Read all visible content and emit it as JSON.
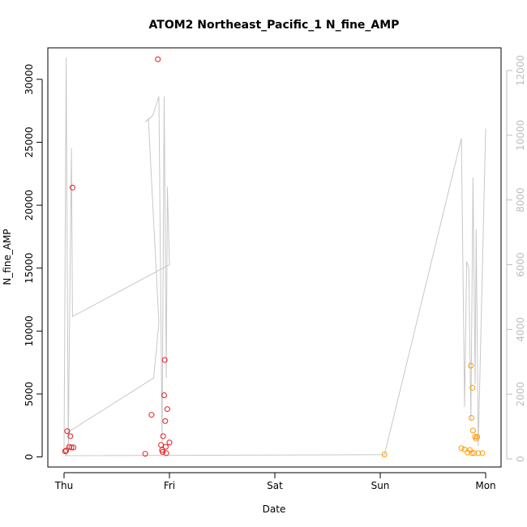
{
  "chart_data": {
    "type": "scatter",
    "title": "ATOM2 Northeast_Pacific_1 N_fine_AMP",
    "xlabel": "Date",
    "ylabel": "N_fine_AMP",
    "x_ticks": [
      "Thu",
      "Fri",
      "Sat",
      "Sun",
      "Mon"
    ],
    "xlim": [
      0,
      4
    ],
    "y_ticks": [
      0,
      5000,
      10000,
      15000,
      20000,
      25000,
      30000
    ],
    "ylim": [
      -800,
      32500
    ],
    "y2_ticks": [
      0,
      2000,
      4000,
      6000,
      8000,
      10000,
      12000
    ],
    "y2lim": [
      -250,
      12700
    ],
    "colors": {
      "red": "#e41a1c",
      "orange": "#ff9900",
      "secondary": "#c8c8c8",
      "right_axis": "#bdbdbd"
    },
    "series": [
      {
        "color": "red",
        "points": [
          [
            0.01,
            450
          ],
          [
            0.02,
            500
          ],
          [
            0.03,
            2050
          ],
          [
            0.05,
            800
          ],
          [
            0.06,
            1650
          ],
          [
            0.07,
            750
          ],
          [
            0.08,
            21400
          ],
          [
            0.09,
            750
          ],
          [
            0.77,
            250
          ],
          [
            0.83,
            3350
          ],
          [
            0.89,
            31600
          ],
          [
            0.92,
            950
          ],
          [
            0.93,
            550
          ],
          [
            0.935,
            400
          ],
          [
            0.94,
            1650
          ],
          [
            0.95,
            4900
          ],
          [
            0.955,
            7700
          ],
          [
            0.96,
            2850
          ],
          [
            0.965,
            800
          ],
          [
            0.97,
            300
          ],
          [
            0.98,
            3800
          ],
          [
            1.0,
            1150
          ]
        ]
      },
      {
        "color": "orange",
        "points": [
          [
            3.04,
            200
          ],
          [
            3.77,
            700
          ],
          [
            3.8,
            600
          ],
          [
            3.83,
            350
          ],
          [
            3.85,
            550
          ],
          [
            3.86,
            7250
          ],
          [
            3.865,
            3100
          ],
          [
            3.87,
            300
          ],
          [
            3.875,
            5500
          ],
          [
            3.88,
            2100
          ],
          [
            3.89,
            300
          ],
          [
            3.9,
            1600
          ],
          [
            3.91,
            1450
          ],
          [
            3.92,
            1600
          ],
          [
            3.93,
            300
          ],
          [
            3.97,
            300
          ]
        ]
      }
    ],
    "secondary_series": {
      "axis": "right",
      "points": [
        [
          0.0,
          200
        ],
        [
          0.02,
          12400
        ],
        [
          0.04,
          400
        ],
        [
          0.07,
          9600
        ],
        [
          0.08,
          4400
        ],
        [
          1.0,
          6000
        ],
        [
          0.98,
          8400
        ],
        [
          0.97,
          2500
        ],
        [
          0.95,
          11200
        ],
        [
          0.93,
          500
        ],
        [
          0.9,
          11200
        ],
        [
          0.84,
          10600
        ],
        [
          0.77,
          10400
        ],
        [
          0.77,
          10400
        ],
        [
          0.8,
          10500
        ],
        [
          0.9,
          4200
        ],
        [
          0.85,
          2500
        ],
        [
          0.05,
          850
        ],
        [
          0.03,
          150
        ],
        [
          0.01,
          100
        ],
        [
          3.04,
          130
        ],
        [
          3.77,
          9900
        ],
        [
          3.8,
          1600
        ],
        [
          3.82,
          6100
        ],
        [
          3.84,
          5900
        ],
        [
          3.86,
          1200
        ],
        [
          3.88,
          8700
        ],
        [
          3.9,
          2300
        ],
        [
          3.91,
          7100
        ],
        [
          3.93,
          400
        ],
        [
          4.0,
          10200
        ]
      ]
    },
    "grid": false,
    "legend": "none"
  }
}
